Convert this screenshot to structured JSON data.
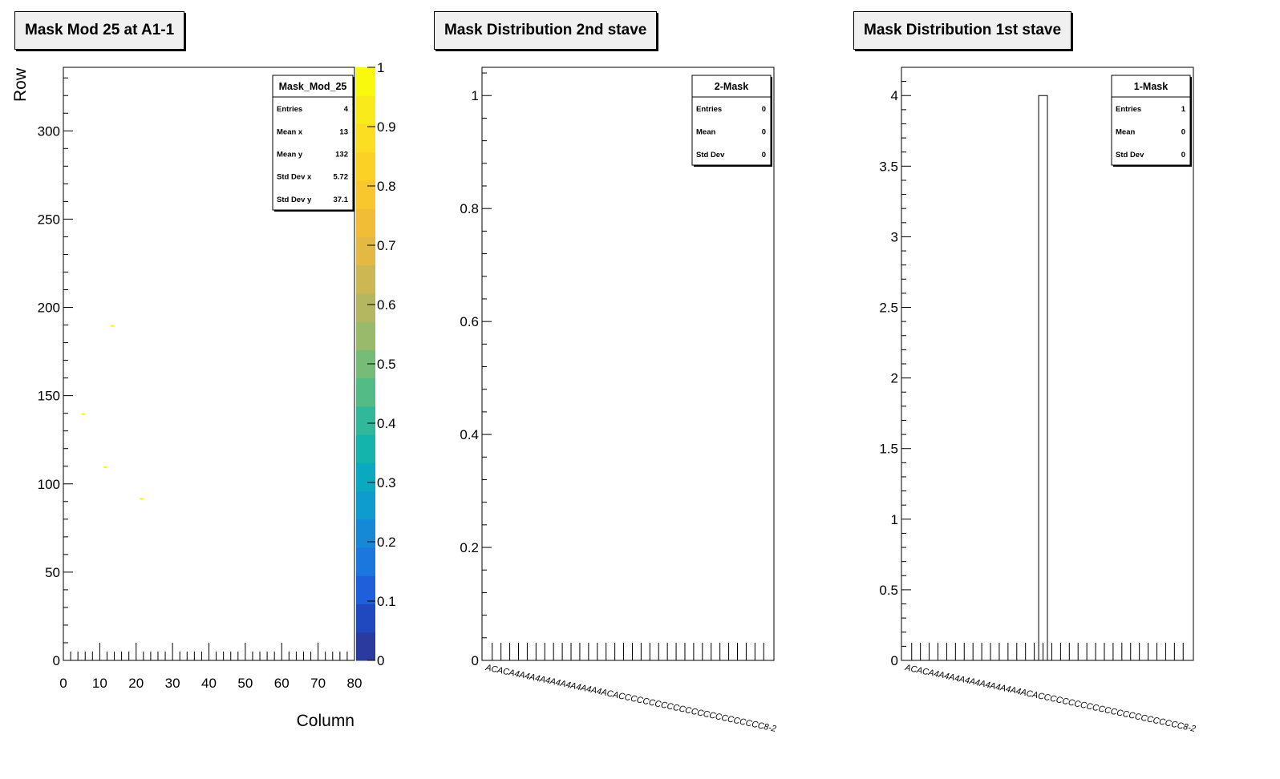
{
  "panels": {
    "left": {
      "title": "Mask Mod 25 at A1-1"
    },
    "middle": {
      "title": "Mask Distribution 2nd stave"
    },
    "right": {
      "title": "Mask Distribution 1st stave"
    }
  },
  "chart_data": [
    {
      "type": "heatmap",
      "title": "Mask Mod 25 at A1-1",
      "xlabel": "Column",
      "ylabel": "Row",
      "xlim": [
        0,
        80
      ],
      "ylim": [
        0,
        336
      ],
      "xticks": [
        "0",
        "10",
        "20",
        "30",
        "40",
        "50",
        "60",
        "70",
        "80"
      ],
      "yticks": [
        "0",
        "50",
        "100",
        "150",
        "200",
        "250",
        "300"
      ],
      "colorbar": {
        "zlim": [
          0,
          1
        ],
        "ticks": [
          "0",
          "0.1",
          "0.2",
          "0.3",
          "0.4",
          "0.5",
          "0.6",
          "0.7",
          "0.8",
          "0.9",
          "1"
        ]
      },
      "points": [
        {
          "x": 5,
          "y": 139,
          "z": 1
        },
        {
          "x": 11,
          "y": 109,
          "z": 1
        },
        {
          "x": 13,
          "y": 189,
          "z": 1
        },
        {
          "x": 21,
          "y": 91,
          "z": 1
        }
      ],
      "stats": {
        "name": "Mask_Mod_25",
        "rows": [
          {
            "label": "Entries",
            "value": "4"
          },
          {
            "label": "Mean x",
            "value": "13"
          },
          {
            "label": "Mean y",
            "value": "132"
          },
          {
            "label": "Std Dev x",
            "value": "5.72"
          },
          {
            "label": "Std Dev y",
            "value": "37.1"
          }
        ]
      },
      "legend_position": "top-right"
    },
    {
      "type": "bar",
      "title": "Mask Distribution 2nd stave",
      "ylim": [
        0,
        1.05
      ],
      "yticks": [
        "0",
        "0.2",
        "0.4",
        "0.6",
        "0.8",
        "1"
      ],
      "bins": 32,
      "values": [
        0,
        0,
        0,
        0,
        0,
        0,
        0,
        0,
        0,
        0,
        0,
        0,
        0,
        0,
        0,
        0,
        0,
        0,
        0,
        0,
        0,
        0,
        0,
        0,
        0,
        0,
        0,
        0,
        0,
        0,
        0,
        0
      ],
      "category_labels": "ACACA4A4A4A4A4A4A4A4A4ACACCCCCCCCCCCCCCCCCCCCCCCC8-2",
      "stats": {
        "name": "2-Mask",
        "rows": [
          {
            "label": "Entries",
            "value": "0"
          },
          {
            "label": "Mean",
            "value": "0"
          },
          {
            "label": "Std Dev",
            "value": "0"
          }
        ]
      },
      "legend_position": "top-right"
    },
    {
      "type": "bar",
      "title": "Mask Distribution 1st stave",
      "ylim": [
        0,
        4.2
      ],
      "yticks": [
        "0",
        "0.5",
        "1",
        "1.5",
        "2",
        "2.5",
        "3",
        "3.5",
        "4"
      ],
      "bins": 32,
      "values": [
        0,
        0,
        0,
        0,
        0,
        0,
        0,
        0,
        0,
        0,
        0,
        0,
        0,
        0,
        0,
        4,
        0,
        0,
        0,
        0,
        0,
        0,
        0,
        0,
        0,
        0,
        0,
        0,
        0,
        0,
        0,
        0
      ],
      "category_labels": "ACACA4A4A4A4A4A4A4A4A4ACACCCCCCCCCCCCCCCCCCCCCCCC8-2",
      "stats": {
        "name": "1-Mask",
        "rows": [
          {
            "label": "Entries",
            "value": "1"
          },
          {
            "label": "Mean",
            "value": "0"
          },
          {
            "label": "Std Dev",
            "value": "0"
          }
        ]
      },
      "legend_position": "top-right"
    }
  ]
}
